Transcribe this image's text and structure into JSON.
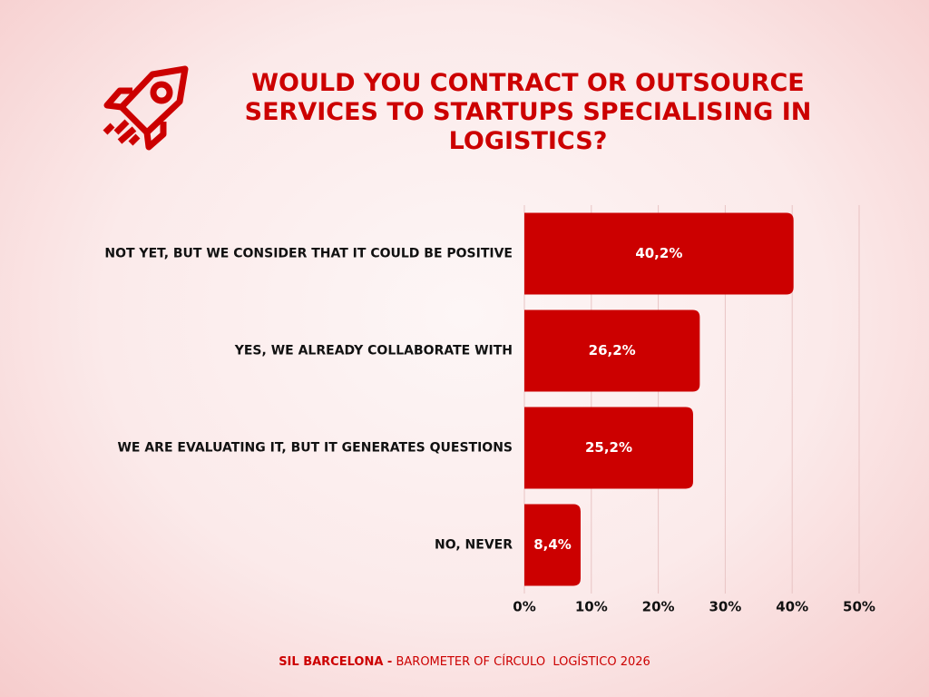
{
  "chart_data": {
    "type": "hbar",
    "title": "WOULD YOU CONTRACT OR OUTSOURCE SERVICES TO STARTUPS SPECIALISING IN LOGISTICS?",
    "categories": [
      "NOT YET, BUT WE CONSIDER THAT IT COULD BE POSITIVE",
      "YES, WE ALREADY COLLABORATE WITH",
      "WE ARE EVALUATING IT, BUT IT GENERATES QUESTIONS",
      "NO, NEVER"
    ],
    "values": [
      40.2,
      26.2,
      25.2,
      8.4
    ],
    "value_labels": [
      "40,2%",
      "26,2%",
      "25,2%",
      "8,4%"
    ],
    "color": "#cc0000",
    "xlim": [
      0,
      50
    ],
    "xticks": [
      {
        "value": 0,
        "label": "0%"
      },
      {
        "value": 10,
        "label": "10%"
      },
      {
        "value": 20,
        "label": "20%"
      },
      {
        "value": 30,
        "label": "30%"
      },
      {
        "value": 40,
        "label": "40%"
      },
      {
        "value": 50,
        "label": "50%"
      }
    ],
    "grid": true,
    "source_label": "SIL BARCELONA -",
    "source": "BAROMETER OF CÍRCULO  LOGÍSTICO 2026"
  }
}
